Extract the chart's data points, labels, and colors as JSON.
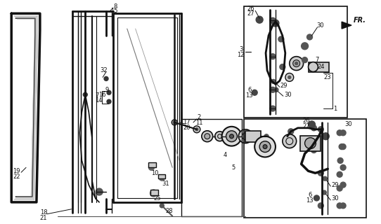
{
  "bg_color": "#ffffff",
  "line_color": "#111111",
  "fig_width": 5.42,
  "fig_height": 3.2,
  "dpi": 100
}
